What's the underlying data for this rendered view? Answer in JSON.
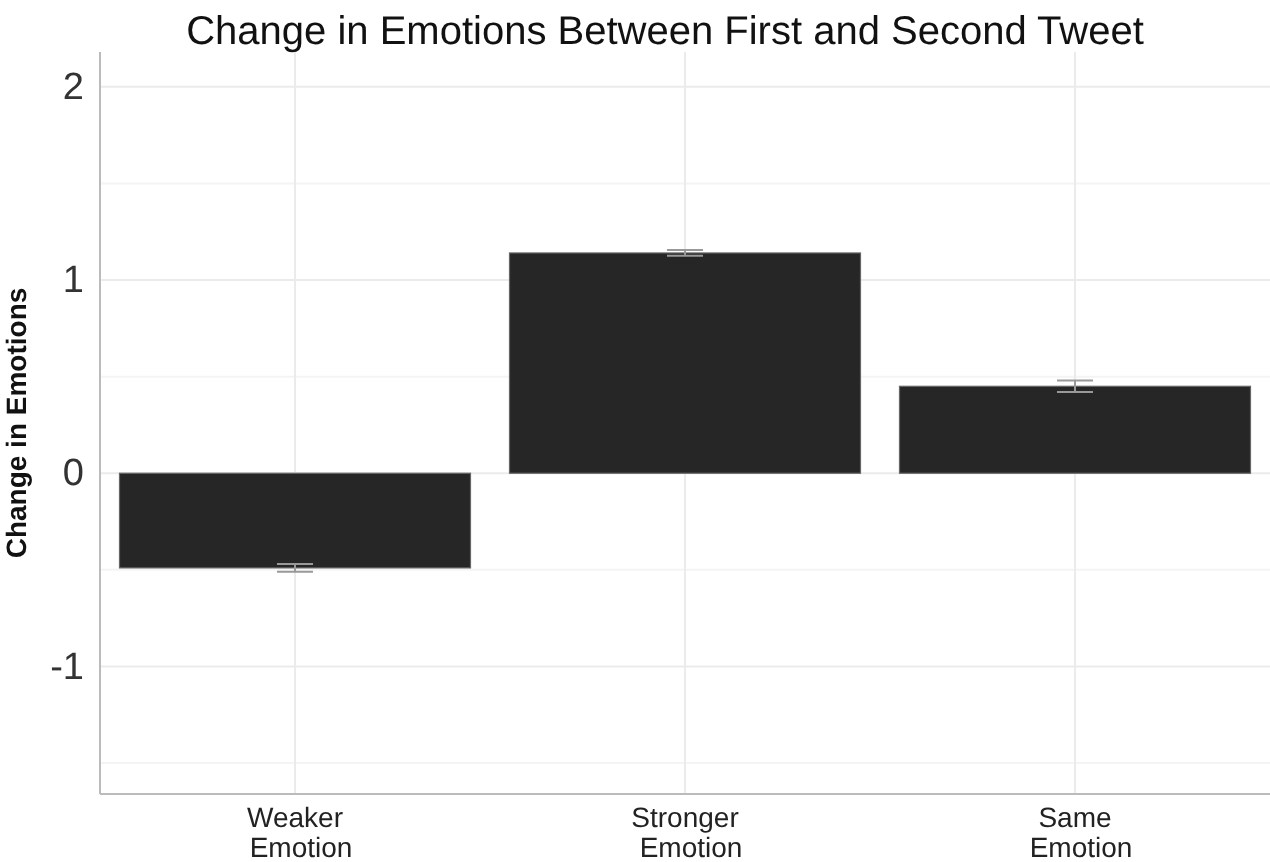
{
  "chart_data": {
    "type": "bar",
    "title": "Change in Emotions Between First and Second Tweet",
    "ylabel": "Change in Emotions",
    "categories": [
      "Weaker\nEmotion",
      "Stronger\nEmotion",
      "Same\nEmotion"
    ],
    "values": [
      -0.49,
      1.14,
      0.45
    ],
    "errors": [
      0.02,
      0.015,
      0.03
    ],
    "color": "#262626",
    "ylim": [
      -1.66,
      2.18
    ],
    "yticks": [
      {
        "value": -1.5,
        "label": null
      },
      -1,
      {
        "value": -0.5,
        "label": null
      },
      0,
      {
        "value": 0.5,
        "label": null
      },
      1,
      {
        "value": 1.5,
        "label": null
      },
      2
    ],
    "grid": true
  }
}
